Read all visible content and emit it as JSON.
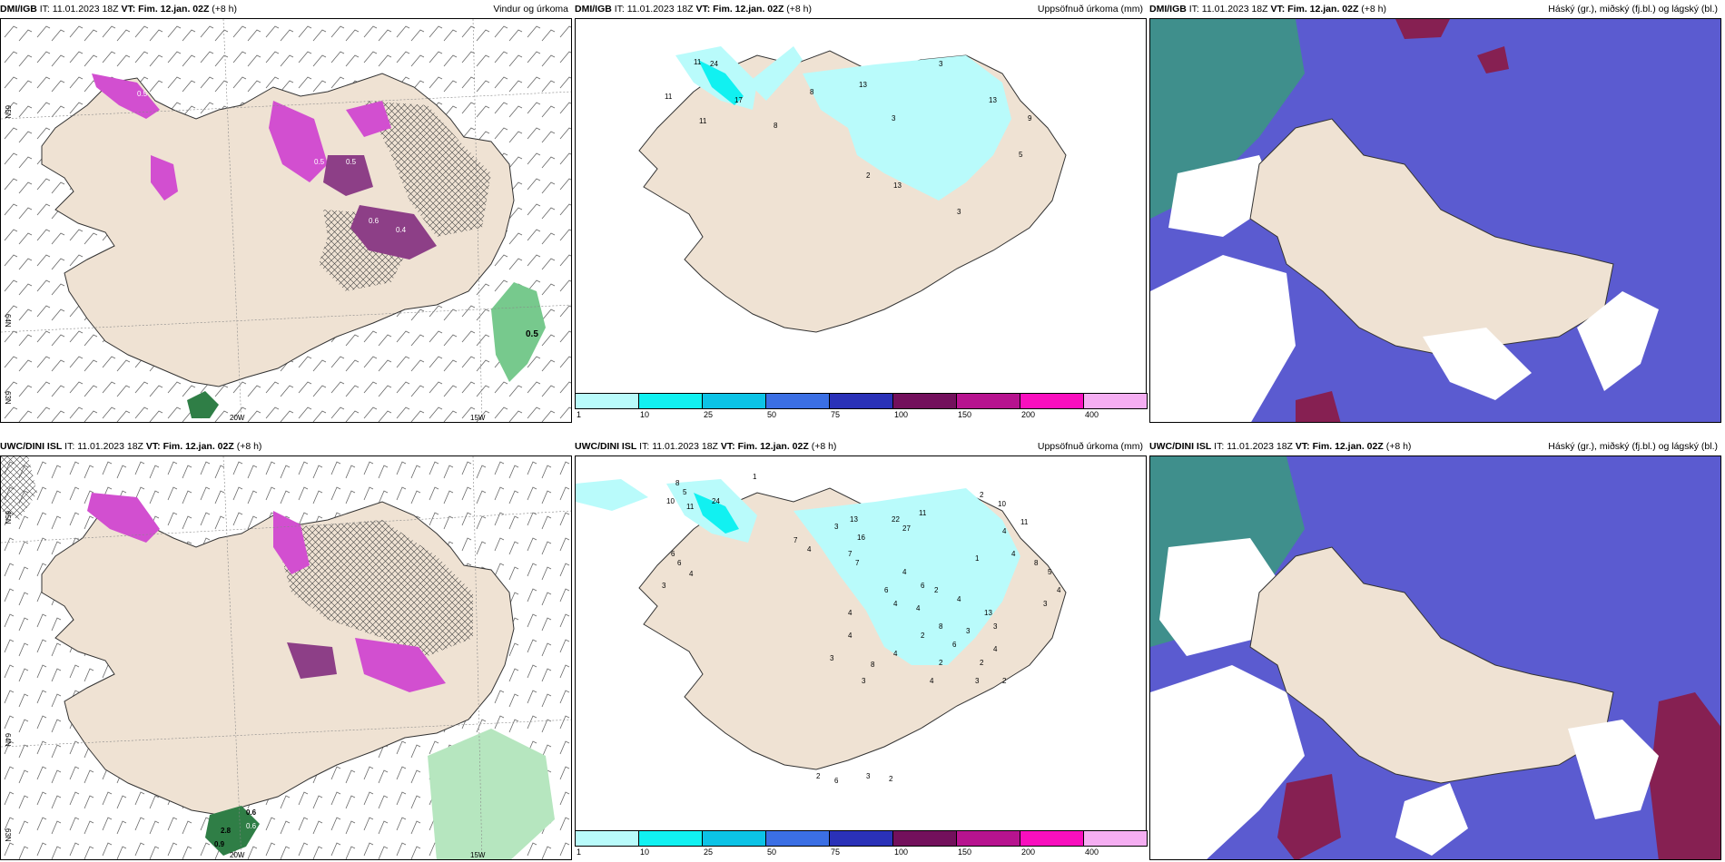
{
  "panels": [
    {
      "model": "DMI/IGB",
      "it_label": "IT:",
      "it_value": "11.01.2023 18Z",
      "vt_label": "VT:",
      "vt_value": "Fim. 12.jan. 02Z",
      "offset": "(+8 h)",
      "title": "Vindur og úrkoma"
    },
    {
      "model": "DMI/IGB",
      "it_label": "IT:",
      "it_value": "11.01.2023 18Z",
      "vt_label": "VT:",
      "vt_value": "Fim. 12.jan. 02Z",
      "offset": "(+8 h)",
      "title": "Uppsöfnuð úrkoma (mm)"
    },
    {
      "model": "DMI/IGB",
      "it_label": "IT:",
      "it_value": "11.01.2023 18Z",
      "vt_label": "VT:",
      "vt_value": "Fim. 12.jan. 02Z",
      "offset": "(+8 h)",
      "title": "Háský (gr.), miðský (fj.bl.) og lágský (bl.)"
    },
    {
      "model": "UWC/DINI ISL",
      "it_label": "IT:",
      "it_value": "11.01.2023 18Z",
      "vt_label": "VT:",
      "vt_value": "Fim. 12.jan. 02Z",
      "offset": "(+8 h)",
      "title": ""
    },
    {
      "model": "UWC/DINI ISL",
      "it_label": "IT:",
      "it_value": "11.01.2023 18Z",
      "vt_label": "VT:",
      "vt_value": "Fim. 12.jan. 02Z",
      "offset": "(+8 h)",
      "title": "Uppsöfnuð úrkoma (mm)"
    },
    {
      "model": "UWC/DINI ISL",
      "it_label": "IT:",
      "it_value": "11.01.2023 18Z",
      "vt_label": "VT:",
      "vt_value": "Fim. 12.jan. 02Z",
      "offset": "(+8 h)",
      "title": "Háský (gr.), miðský (fj.bl.) og lágský (bl.)"
    }
  ],
  "axis_labels": {
    "lat_65": "65N",
    "lat_64": "64N",
    "lat_63": "63N",
    "lon_20": "20W",
    "lon_15": "15W"
  },
  "colorbar": {
    "ticks": [
      "1",
      "10",
      "25",
      "50",
      "75",
      "100",
      "150",
      "200",
      "400"
    ],
    "colors": [
      "#b9fbfb",
      "#11f1f1",
      "#0cc3e6",
      "#3b6fe4",
      "#2a31b8",
      "#73105c",
      "#b7138f",
      "#f90fbe",
      "#f5aef2"
    ]
  },
  "precip_values": {
    "top": [
      "11",
      "24",
      "17",
      "11",
      "8",
      "8",
      "13",
      "11",
      "3",
      "13",
      "9",
      "5",
      "3",
      "2",
      "13",
      "3"
    ],
    "bottom": [
      "1",
      "8",
      "5",
      "10",
      "11",
      "24",
      "6",
      "6",
      "4",
      "3",
      "7",
      "4",
      "3",
      "13",
      "16",
      "7",
      "7",
      "22",
      "27",
      "11",
      "2",
      "10",
      "4",
      "11",
      "4",
      "8",
      "5",
      "4",
      "3",
      "4",
      "1",
      "6",
      "2",
      "4",
      "13",
      "6",
      "4",
      "4",
      "8",
      "3",
      "3",
      "4",
      "2",
      "6",
      "2",
      "2",
      "4",
      "8",
      "4",
      "3",
      "2",
      "4",
      "4",
      "3",
      "3",
      "2",
      "6",
      "3",
      "2"
    ]
  },
  "wind_precip_values": {
    "top": [
      "0.5",
      "0.5",
      "0.5",
      "0.4",
      "0.6",
      "0.5"
    ],
    "bottom": [
      "0.6",
      "0.9",
      "2.8",
      "0.6"
    ]
  },
  "colors": {
    "land": "#efe2d3",
    "coast": "#333333",
    "grid": "#888888",
    "pmagenta": "#d24fd0",
    "pdark": "#8d3f87",
    "green": "#77c98d",
    "cloud_high": "#5b5bd0",
    "cloud_mid": "#3f8f8c",
    "cloud_low": "#862052"
  }
}
